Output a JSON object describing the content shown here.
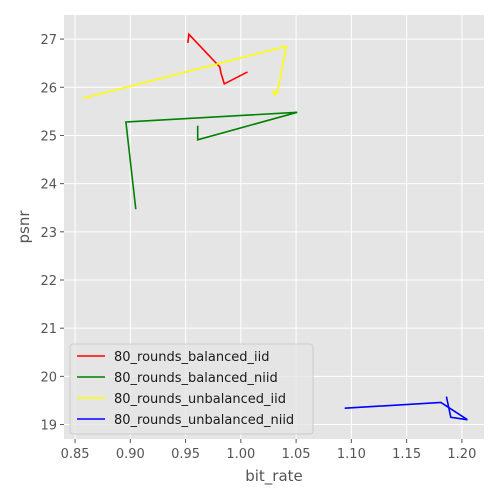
{
  "chart_data": {
    "type": "line",
    "title": "",
    "xlabel": "bit_rate",
    "ylabel": "psnr",
    "xlim": [
      0.84,
      1.22
    ],
    "ylim": [
      18.7,
      27.5
    ],
    "xticks": [
      "0.85",
      "0.90",
      "0.95",
      "1.00",
      "1.05",
      "1.10",
      "1.15",
      "1.20"
    ],
    "yticks": [
      "19",
      "20",
      "21",
      "22",
      "23",
      "24",
      "25",
      "26",
      "27"
    ],
    "grid": true,
    "legend_position": "lower-left",
    "series": [
      {
        "name": "80_rounds_balanced_iid",
        "color": "#ff0000",
        "x": [
          0.952,
          0.953,
          0.981,
          0.982,
          0.985,
          1.006
        ],
        "y": [
          26.92,
          27.1,
          26.42,
          26.3,
          26.07,
          26.32
        ]
      },
      {
        "name": "80_rounds_balanced_niid",
        "color": "#008000",
        "x": [
          0.905,
          0.896,
          1.051,
          0.961,
          0.961
        ],
        "y": [
          23.47,
          25.28,
          25.48,
          24.91,
          25.2
        ]
      },
      {
        "name": "80_rounds_unbalanced_iid",
        "color": "#ffff00",
        "x": [
          0.857,
          1.041,
          1.033,
          1.029,
          1.031
        ],
        "y": [
          25.77,
          26.85,
          25.88,
          25.92,
          25.82
        ]
      },
      {
        "name": "80_rounds_unbalanced_niid",
        "color": "#0000ff",
        "x": [
          1.094,
          1.181,
          1.205,
          1.19,
          1.186
        ],
        "y": [
          19.34,
          19.46,
          19.1,
          19.15,
          19.58
        ]
      }
    ]
  }
}
